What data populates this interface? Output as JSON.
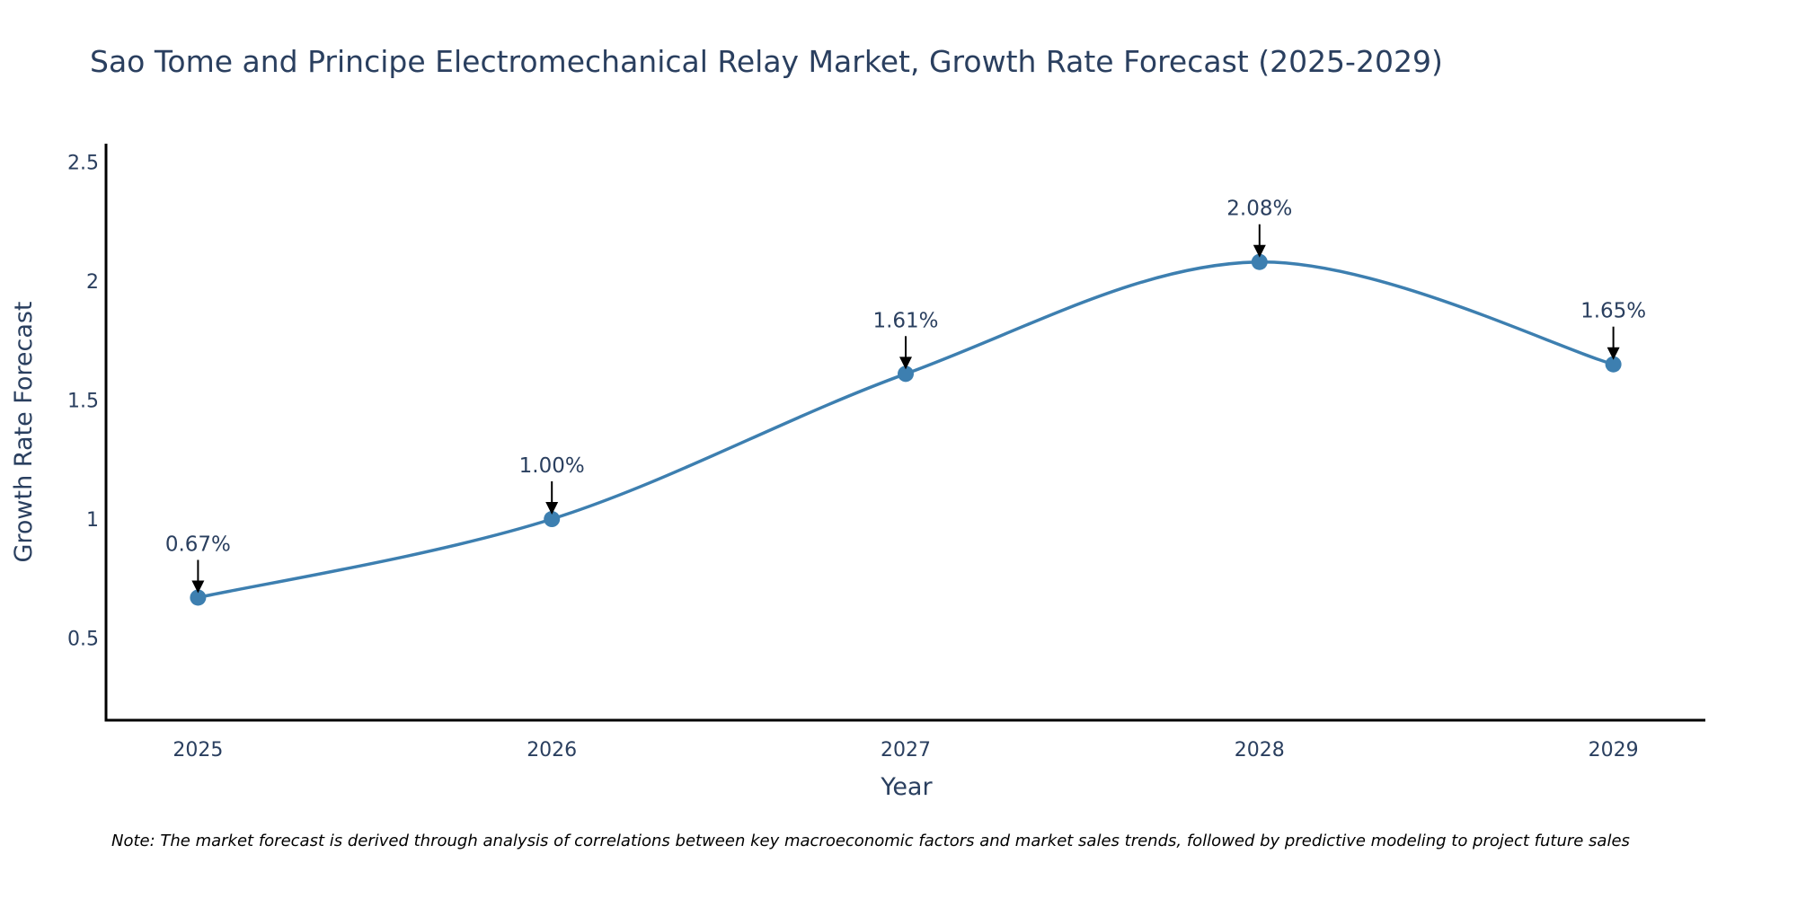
{
  "chart_data": {
    "type": "line",
    "title": "Sao Tome and Principe Electromechanical Relay Market, Growth Rate Forecast (2025-2029)",
    "xlabel": "Year",
    "ylabel": "Growth Rate Forecast",
    "x": [
      "2025",
      "2026",
      "2027",
      "2028",
      "2029"
    ],
    "series": [
      {
        "name": "Growth Rate Forecast",
        "values": [
          0.67,
          1.0,
          1.61,
          2.08,
          1.65
        ],
        "labels": [
          "0.67%",
          "1.00%",
          "1.61%",
          "2.08%",
          "1.65%"
        ],
        "color": "#3d7fb0",
        "line_shape": "spline",
        "markers": true
      }
    ],
    "yticks": [
      0.5,
      1,
      1.5,
      2,
      2.5
    ],
    "ytick_labels": [
      "0.5",
      "1",
      "1.5",
      "2",
      "2.5"
    ],
    "xlim": [
      2024.74,
      2029.26
    ],
    "ylim": [
      0.155,
      2.577
    ],
    "grid": false,
    "legend": "none",
    "annotations": [
      "0.67%",
      "1.00%",
      "1.61%",
      "2.08%",
      "1.65%"
    ],
    "note": "Note: The market forecast is derived through analysis of correlations between key macroeconomic factors and market sales trends, followed by predictive modeling to project future sales"
  },
  "colors": {
    "line": "#3d7fb0",
    "marker": "#3d7fb0",
    "text": "#2a3f5f",
    "axis": "#000000",
    "arrow": "#000000"
  }
}
